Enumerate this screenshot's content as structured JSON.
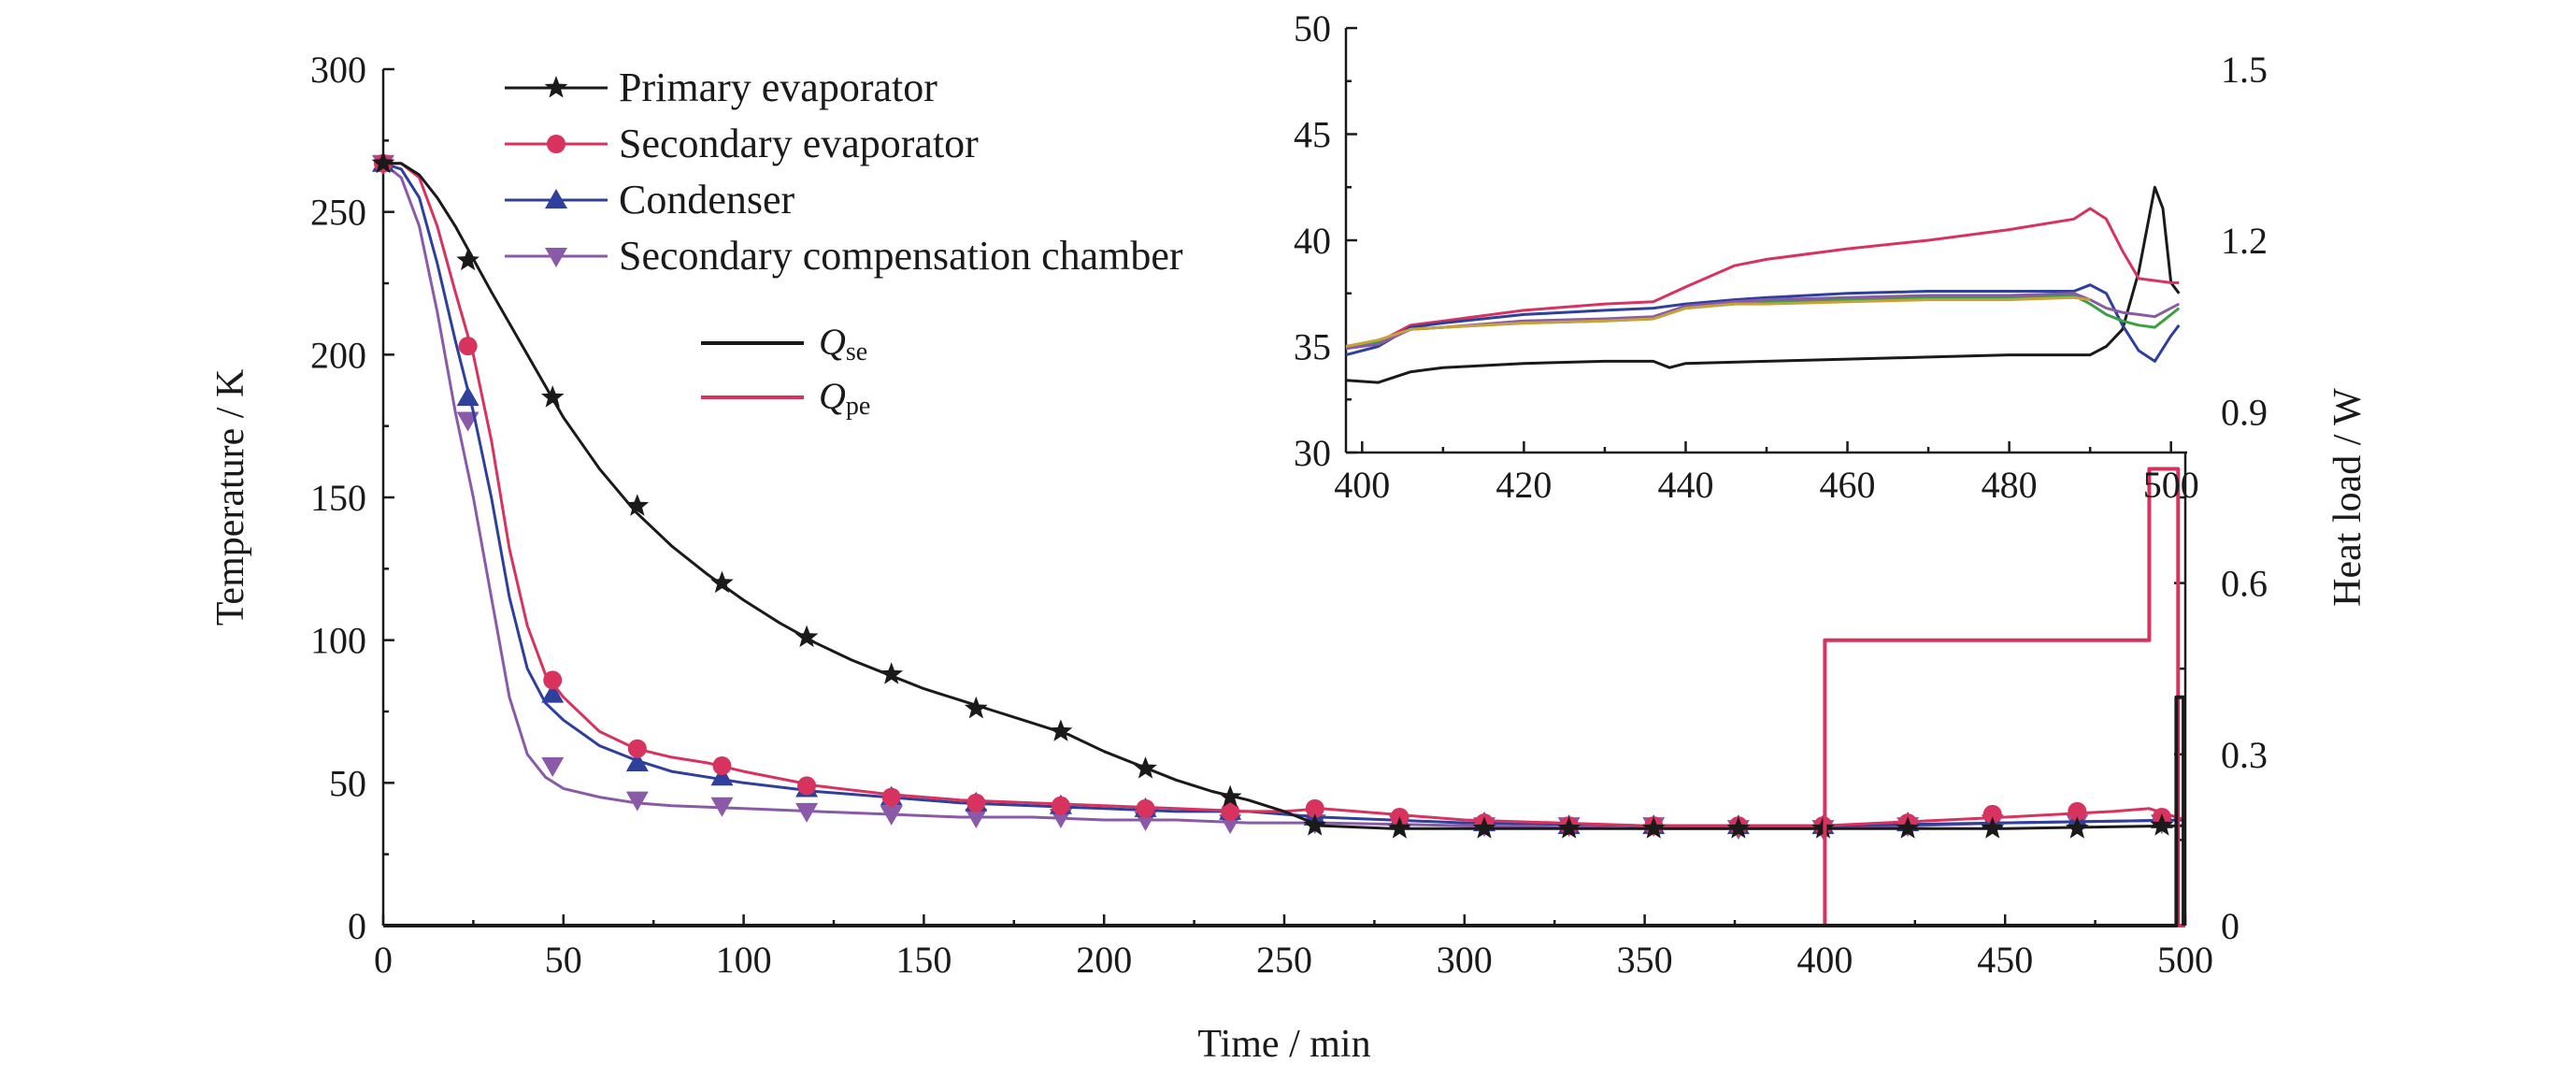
{
  "chart_data": [
    {
      "type": "line",
      "xlabel": "Time / min",
      "ylabel": "Temperature / K",
      "y2label": "Heat load / W",
      "xlim": [
        0,
        500
      ],
      "ylim": [
        0,
        300
      ],
      "y2lim": [
        0,
        1.5
      ],
      "xticks": [
        "0",
        "50",
        "100",
        "150",
        "200",
        "250",
        "300",
        "350",
        "400",
        "450",
        "500"
      ],
      "yticks": [
        "0",
        "50",
        "100",
        "150",
        "200",
        "250",
        "300"
      ],
      "y2ticks": [
        "0",
        "0.3",
        "0.6",
        "0.9",
        "1.2",
        "1.5"
      ],
      "grid": false,
      "legend_placement": "top-left",
      "series": [
        {
          "name": "Primary evaporator",
          "color": "#1a1a1a",
          "marker": "star",
          "x": [
            0,
            5,
            10,
            15,
            20,
            30,
            40,
            50,
            60,
            70,
            80,
            90,
            100,
            110,
            120,
            130,
            140,
            150,
            160,
            170,
            180,
            190,
            200,
            210,
            220,
            230,
            240,
            250,
            260,
            280,
            300,
            350,
            400,
            450,
            500
          ],
          "y": [
            267,
            267,
            263,
            255,
            245,
            222,
            200,
            178,
            160,
            145,
            133,
            123,
            114,
            106,
            99,
            93,
            88,
            83,
            79,
            75,
            71,
            67,
            61,
            56,
            51,
            47,
            44,
            40,
            35,
            34,
            34,
            34,
            34,
            34,
            35
          ],
          "marker_x": [
            0,
            23.5,
            47,
            70.5,
            94,
            117.5,
            141,
            164.5,
            188,
            211.5,
            235,
            258.5,
            282,
            305.5,
            329,
            352.5,
            376,
            399.5,
            423,
            446.5,
            470,
            493.5
          ],
          "marker_y": [
            267,
            233,
            185,
            147,
            120,
            101,
            88,
            76,
            68,
            55,
            45,
            35,
            34,
            34,
            34,
            34,
            34,
            34,
            34,
            34,
            34,
            35
          ]
        },
        {
          "name": "Secondary evaporator",
          "color": "#d8335f",
          "marker": "circle",
          "x": [
            0,
            5,
            10,
            15,
            20,
            25,
            30,
            35,
            40,
            45,
            50,
            60,
            70,
            80,
            90,
            100,
            120,
            140,
            160,
            180,
            200,
            220,
            240,
            250,
            260,
            280,
            300,
            350,
            400,
            450,
            480,
            490,
            500
          ],
          "y": [
            267,
            267,
            262,
            245,
            222,
            200,
            170,
            132,
            105,
            88,
            80,
            68,
            62,
            59,
            57,
            54,
            49,
            46,
            44,
            43,
            42,
            41,
            40,
            40,
            41,
            39,
            37,
            35,
            35,
            38,
            40,
            41,
            37
          ],
          "marker_x": [
            0,
            23.5,
            47,
            70.5,
            94,
            117.5,
            141,
            164.5,
            188,
            211.5,
            235,
            258.5,
            282,
            305.5,
            329,
            352.5,
            376,
            399.5,
            423,
            446.5,
            470,
            493.5
          ],
          "marker_y": [
            267,
            203,
            86,
            62,
            56,
            49,
            45,
            43,
            42,
            41,
            40,
            41,
            38,
            36,
            35,
            35,
            35,
            35,
            36,
            39,
            40,
            38
          ]
        },
        {
          "name": "Condenser",
          "color": "#2e3f9c",
          "marker": "triangle-up",
          "x": [
            0,
            5,
            10,
            15,
            20,
            25,
            30,
            35,
            40,
            45,
            50,
            60,
            70,
            80,
            90,
            100,
            120,
            140,
            160,
            180,
            200,
            220,
            240,
            260,
            300,
            350,
            400,
            450,
            500
          ],
          "y": [
            267,
            265,
            255,
            232,
            205,
            180,
            150,
            115,
            90,
            78,
            72,
            63,
            58,
            54,
            52,
            50,
            47,
            45,
            43,
            42,
            41,
            40,
            40,
            38,
            36,
            35,
            35,
            36,
            37
          ],
          "marker_x": [
            0,
            23.5,
            47,
            70.5,
            94,
            117.5,
            141,
            164.5,
            188,
            211.5,
            235,
            258.5,
            282,
            305.5,
            329,
            352.5,
            376,
            399.5,
            423,
            446.5,
            470,
            493.5
          ],
          "marker_y": [
            267,
            185,
            81,
            57,
            52,
            48,
            45,
            43,
            42,
            41,
            40,
            38,
            37,
            36,
            35,
            35,
            35,
            35,
            36,
            37,
            37,
            37
          ]
        },
        {
          "name": "Secondary compensation chamber",
          "color": "#8a5aa8",
          "marker": "triangle-down",
          "x": [
            0,
            5,
            10,
            15,
            20,
            25,
            30,
            35,
            40,
            45,
            50,
            60,
            70,
            80,
            100,
            120,
            140,
            160,
            180,
            200,
            220,
            240,
            260,
            300,
            350,
            400,
            450,
            500
          ],
          "y": [
            267,
            262,
            245,
            215,
            180,
            150,
            115,
            80,
            60,
            52,
            48,
            45,
            43,
            42,
            41,
            40,
            39,
            38,
            38,
            37,
            37,
            36,
            36,
            35,
            34,
            34,
            36,
            37
          ],
          "marker_x": [
            0,
            23.5,
            47,
            70.5,
            94,
            117.5,
            141,
            164.5,
            188,
            211.5,
            235,
            258.5,
            282,
            305.5,
            329,
            352.5,
            376,
            399.5,
            423,
            446.5,
            470,
            493.5
          ],
          "marker_y": [
            267,
            177,
            56,
            44,
            42,
            40,
            39,
            38,
            38,
            37,
            36,
            36,
            36,
            35,
            35,
            35,
            34,
            34,
            35,
            36,
            36,
            36
          ]
        },
        {
          "name": "Qse",
          "label_main": "Q",
          "label_sub": "se",
          "color": "#1a1a1a",
          "axis": "right",
          "step": true,
          "x": [
            0,
            497.5,
            497.5,
            499.5,
            499.5
          ],
          "y": [
            0,
            0,
            0.4,
            0.4,
            0
          ]
        },
        {
          "name": "Qpe",
          "label_main": "Q",
          "label_sub": "pe",
          "color": "#d8335f",
          "axis": "right",
          "step": true,
          "x": [
            0,
            400,
            400,
            490,
            490,
            498,
            498,
            500
          ],
          "y": [
            0,
            0,
            0.5,
            0.5,
            0.8,
            0.8,
            0,
            0
          ]
        }
      ]
    },
    {
      "type": "line",
      "role": "inset",
      "xlim": [
        398,
        502
      ],
      "ylim": [
        30,
        50
      ],
      "xticks": [
        "400",
        "420",
        "440",
        "460",
        "480",
        "500"
      ],
      "yticks": [
        "30",
        "35",
        "40",
        "45",
        "50"
      ],
      "grid": false,
      "series": [
        {
          "color": "#1a1a1a",
          "x": [
            398,
            402,
            406,
            410,
            420,
            430,
            436,
            438,
            440,
            450,
            460,
            470,
            480,
            490,
            492,
            494,
            496,
            498,
            499,
            500,
            501
          ],
          "y": [
            33.4,
            33.3,
            33.8,
            34.0,
            34.2,
            34.3,
            34.3,
            34.0,
            34.2,
            34.3,
            34.4,
            34.5,
            34.6,
            34.6,
            35.0,
            35.8,
            38.5,
            42.5,
            41.5,
            38.0,
            37.5
          ]
        },
        {
          "color": "#d8335f",
          "x": [
            398,
            402,
            406,
            410,
            420,
            430,
            436,
            440,
            446,
            450,
            460,
            470,
            480,
            488,
            490,
            492,
            494,
            496,
            500,
            501
          ],
          "y": [
            34.9,
            35.2,
            36.0,
            36.2,
            36.7,
            37.0,
            37.1,
            37.8,
            38.8,
            39.1,
            39.6,
            40.0,
            40.5,
            41.0,
            41.5,
            41.0,
            39.5,
            38.2,
            38.0,
            38.0
          ]
        },
        {
          "color": "#2e3f9c",
          "x": [
            398,
            402,
            406,
            410,
            420,
            430,
            436,
            440,
            446,
            450,
            460,
            470,
            480,
            488,
            490,
            492,
            494,
            496,
            498,
            500,
            501
          ],
          "y": [
            34.6,
            35.0,
            35.9,
            36.1,
            36.5,
            36.7,
            36.8,
            37.0,
            37.2,
            37.3,
            37.5,
            37.6,
            37.6,
            37.6,
            37.9,
            37.5,
            36.0,
            34.8,
            34.3,
            35.5,
            36.0
          ]
        },
        {
          "color": "#3aa040",
          "x": [
            398,
            402,
            406,
            410,
            420,
            430,
            436,
            440,
            446,
            450,
            460,
            470,
            480,
            488,
            490,
            492,
            494,
            496,
            498,
            500,
            501
          ],
          "y": [
            35.0,
            35.2,
            35.8,
            35.9,
            36.1,
            36.2,
            36.3,
            36.8,
            37.0,
            37.1,
            37.2,
            37.3,
            37.3,
            37.4,
            37.0,
            36.5,
            36.2,
            36.0,
            35.9,
            36.5,
            36.8
          ]
        },
        {
          "color": "#8a5aa8",
          "x": [
            398,
            402,
            406,
            410,
            420,
            430,
            436,
            440,
            446,
            450,
            460,
            470,
            480,
            488,
            490,
            492,
            494,
            496,
            498,
            500,
            501
          ],
          "y": [
            34.9,
            35.1,
            35.8,
            35.9,
            36.2,
            36.3,
            36.4,
            36.9,
            37.1,
            37.2,
            37.3,
            37.4,
            37.4,
            37.5,
            37.2,
            36.8,
            36.6,
            36.5,
            36.4,
            36.8,
            37.0
          ]
        },
        {
          "color": "#c7a23a",
          "x": [
            398,
            402,
            406,
            410,
            420,
            430,
            436,
            440,
            446,
            450,
            460,
            470,
            480,
            488,
            490
          ],
          "y": [
            35.0,
            35.3,
            35.8,
            35.9,
            36.1,
            36.2,
            36.3,
            36.8,
            37.0,
            37.0,
            37.1,
            37.2,
            37.2,
            37.3,
            37.2
          ]
        }
      ]
    }
  ]
}
